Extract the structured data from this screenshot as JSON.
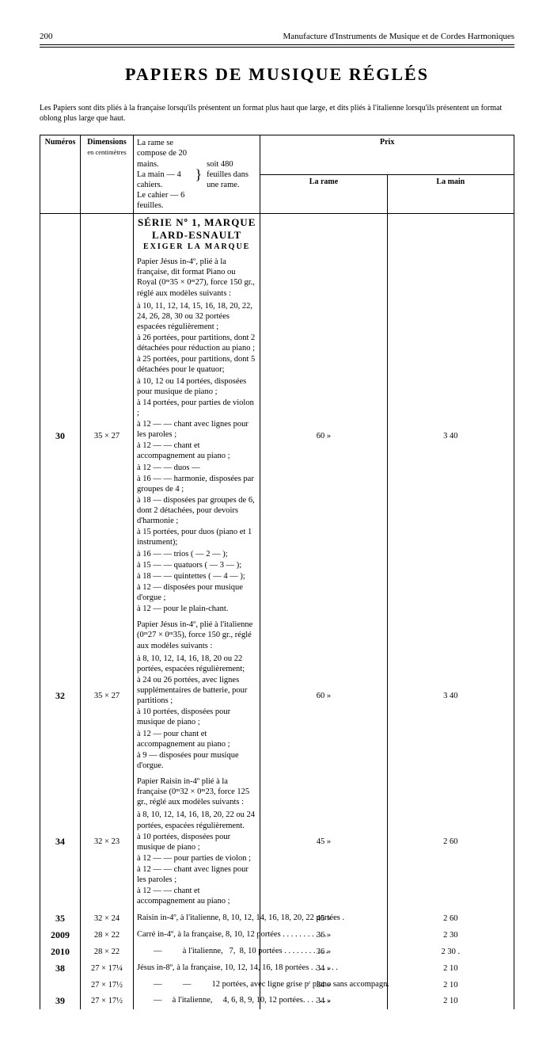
{
  "header": {
    "page_number": "200",
    "running_title": "Manufacture d'Instruments de Musique et de Cordes Harmoniques"
  },
  "title": "PAPIERS DE MUSIQUE RÉGLÉS",
  "intro": "Les Papiers sont dits pliés à la française lorsqu'ils présentent un format plus haut que large, et dits pliés à l'italienne lorsqu'ils présentent un format oblong plus large que haut.",
  "rame_note": {
    "l1": "La rame se compose de 20 mains.",
    "l2": "La main        —        4 cahiers.",
    "l3": "Le cahier       —        6 feuilles.",
    "right": "soit 480 feuilles dans une rame."
  },
  "columns": {
    "numeros": "Numéros",
    "dimensions": "Dimensions",
    "dimensions_sub": "en centimètres",
    "prix": "Prix",
    "la_rame": "La rame",
    "la_main": "La main"
  },
  "serie": {
    "title": "SÉRIE Nº 1, MARQUE LARD-ESNAULT",
    "sub": "EXIGER  LA  MARQUE"
  },
  "rows": [
    {
      "num": "30",
      "dim": "35 × 27",
      "rame": "60   »",
      "main": "3  40",
      "desc": [
        "Papier Jésus in-4º, plié à la française, dit format Piano ou Royal (0ᵐ35 × 0ᵐ27), force 150 gr., réglé aux modèles suivants :",
        "à 10, 11, 12, 14, 15, 16, 18, 20, 22, 24, 26, 28, 30 ou 32 portées espacées régulièrement ;",
        "à 26 portées, pour partitions, dont 2 détachées pour réduction au piano ;",
        "à 25 portées, pour partitions, dont 5 détachées pour le quatuor;",
        "à 10, 12 ou 14 portées, disposées pour musique de piano ;",
        "à 14 portées, pour parties de violon ;",
        "à 12      —         —   chant avec lignes pour les paroles ;",
        "à 12      —         —   chant et accompagnement au piano ;",
        "à 12      —         —   duos                                 —",
        "à 16      —         —   harmonie, disposées par groupes de 4 ;",
        "à 18      —      disposées par groupes de 6, dont 2 détachées, pour devoirs d'harmonie ;",
        "à 15 portées, pour duos        (piano et 1 instrument);",
        "à 16      —         —   trios        (    —       2        —      );",
        "à 15      —         —   quatuors  (    —       3        —      );",
        "à 18      —         —   quintettes (    —       4        —      );",
        "à 12      —      disposées pour musique d'orgue ;",
        "à 12      —      pour le plain-chant."
      ]
    },
    {
      "num": "32",
      "dim": "35 × 27",
      "rame": "60   »",
      "main": "3  40",
      "desc": [
        "Papier Jésus in-4º, plié à l'italienne (0ᵐ27 × 0ᵐ35), force 150 gr., réglé aux modèles suivants :",
        "à 8, 10, 12, 14, 16, 18, 20 ou 22 portées, espacées régulièrement;",
        "à 24 ou 26 portées, avec lignes supplémentaires de batterie, pour partitions ;",
        "à 10 portées, disposées pour musique de piano ;",
        "à 12      —      pour chant et accompagnement au piano ;",
        "à  9      —      disposées pour musique d'orgue."
      ]
    },
    {
      "num": "34",
      "dim": "32 × 23",
      "rame": "45   »",
      "main": "2  60",
      "desc": [
        "Papier Raisin in-4º plié à la française (0ᵐ32 × 0ᵐ23, force 125 gr., réglé aux modèles suivants :",
        "à 8, 10, 12, 14, 16, 18, 20, 22 ou 24 portées, espacées régulièrement.",
        "à 10 portées, disposées pour musique de piano ;",
        "à 12      —         —   pour parties de violon ;",
        "à 12      —         —   chant avec lignes pour les paroles ;",
        "à 12      —         —   chant et accompagnement au piano ;"
      ]
    },
    {
      "num": "35",
      "dim": "32 × 24",
      "rame": "45   »",
      "main": "2  60",
      "desc_single": "Raisin in-4º, à l'italienne, 8, 10, 12, 14, 16, 18, 20, 22 portées ."
    },
    {
      "num": "2009",
      "dim": "28 × 22",
      "rame": "36   »",
      "main": "2  30",
      "desc_single": "Carré in-4º, à la française, 8, 10, 12 portées . . . . . . . . . . ."
    },
    {
      "num": "2010",
      "dim": "28 × 22",
      "rame": "36   »",
      "main": "2  30 .",
      "desc_single": "        —          à l'italienne,   7,  8, 10 portées . . . . . . . . . . ."
    },
    {
      "num": "38",
      "dim": "27 × 17¼",
      "rame": "34   »",
      "main": "2  10",
      "desc_single": "Jésus in-8º, à la française, 10, 12, 14, 16, 18 portées . . . . . . ."
    },
    {
      "num": "",
      "dim": "27 × 17½",
      "rame": "34   »",
      "main": "2  10",
      "desc_single": "        —          —          12 portées, avec ligne grise pʳ piano sans accompagn."
    },
    {
      "num": "39",
      "dim": "27 × 17½",
      "rame": "34   »",
      "main": "2  10",
      "desc_single": "        —     à l'italienne,     4, 6, 8, 9, 10, 12 portées. . . . . . ."
    }
  ]
}
